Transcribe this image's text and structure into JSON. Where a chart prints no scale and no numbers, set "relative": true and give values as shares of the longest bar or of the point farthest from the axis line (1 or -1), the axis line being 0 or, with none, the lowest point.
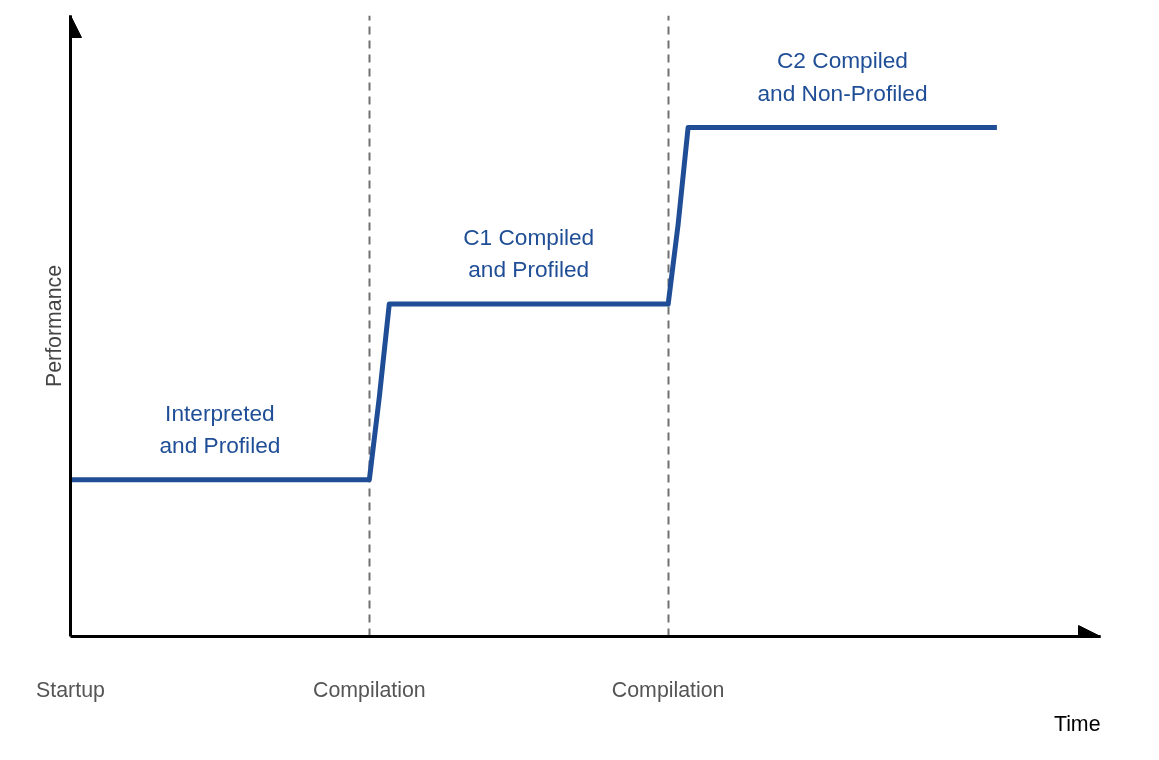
{
  "chart_data": {
    "type": "line",
    "relative": true,
    "xlabel": "Time",
    "ylabel": "Performance",
    "categories": [
      "Startup",
      null,
      null,
      null,
      null,
      null,
      null,
      null,
      null,
      null,
      null,
      null,
      null,
      null,
      null,
      null,
      null,
      null,
      null,
      null,
      null,
      null,
      null,
      null,
      null,
      null,
      null,
      null,
      null,
      null,
      "Compilation",
      null,
      null,
      null,
      null,
      null,
      null,
      null,
      null,
      null,
      null,
      null,
      null,
      null,
      null,
      null,
      null,
      null,
      null,
      null,
      null,
      null,
      null,
      null,
      null,
      null,
      null,
      null,
      null,
      null,
      "Compilation",
      null,
      null,
      null,
      null,
      null,
      null,
      null,
      null,
      null,
      null,
      null,
      null,
      null,
      null,
      null,
      null,
      null,
      null,
      null,
      null,
      null,
      null,
      null,
      null,
      null,
      null,
      null,
      null,
      null,
      null,
      null,
      null,
      null
    ],
    "series": [
      {
        "color": "#1f4e96",
        "values": [
          0.308,
          0.308,
          0.308,
          0.308,
          0.308,
          0.308,
          0.308,
          0.308,
          0.308,
          0.308,
          0.308,
          0.308,
          0.308,
          0.308,
          0.308,
          0.308,
          0.308,
          0.308,
          0.308,
          0.308,
          0.308,
          0.308,
          0.308,
          0.308,
          0.308,
          0.308,
          0.308,
          0.308,
          0.308,
          0.308,
          0.308,
          0.47,
          0.653,
          0.653,
          0.653,
          0.653,
          0.653,
          0.653,
          0.653,
          0.653,
          0.653,
          0.653,
          0.653,
          0.653,
          0.653,
          0.653,
          0.653,
          0.653,
          0.653,
          0.653,
          0.653,
          0.653,
          0.653,
          0.653,
          0.653,
          0.653,
          0.653,
          0.653,
          0.653,
          0.653,
          0.653,
          0.81,
          1,
          1,
          1,
          1,
          1,
          1,
          1,
          1,
          1,
          1,
          1,
          1,
          1,
          1,
          1,
          1,
          1,
          1,
          1,
          1,
          1,
          1,
          1,
          1,
          1,
          1,
          1,
          1,
          1,
          1,
          1,
          1
        ]
      }
    ],
    "annotations": [
      "Interpreted\nand Profiled",
      "C1 Compiled\nand Profiled",
      "C2 Compiled\nand Non-Profiled"
    ],
    "grid": "x",
    "marker": "none",
    "line_style": "solid"
  }
}
